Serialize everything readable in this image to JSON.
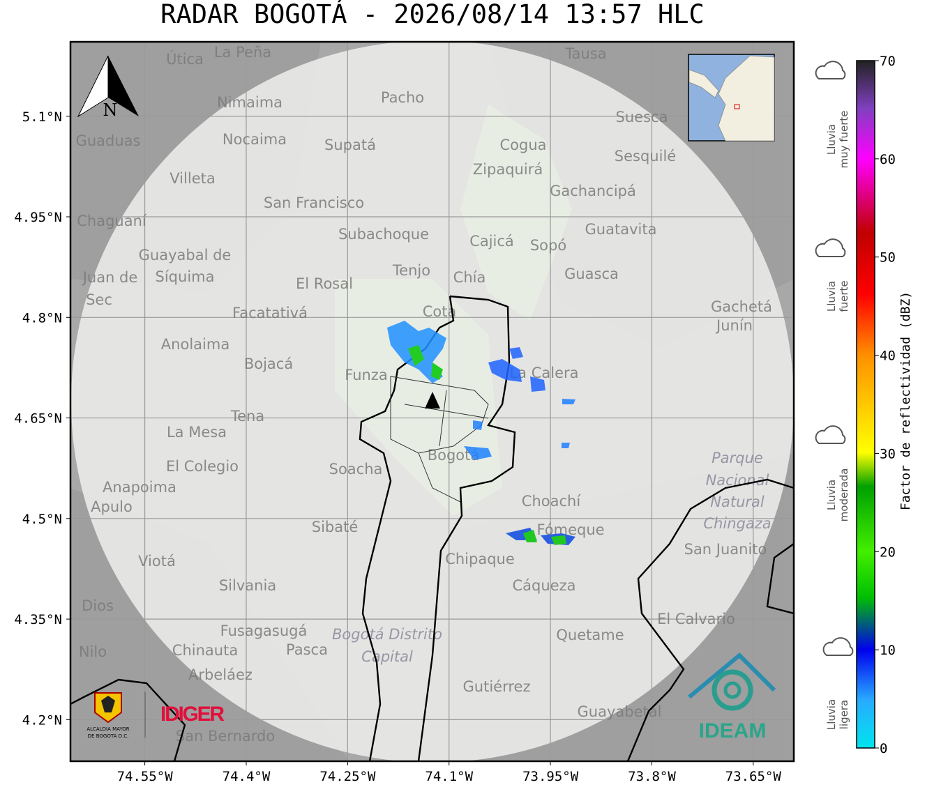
{
  "title": "RADAR BOGOTÁ - 2026/08/14 13:57 HLC",
  "map": {
    "xlim": [
      -74.66,
      -73.59
    ],
    "ylim": [
      4.138,
      5.211
    ],
    "xticks": [
      {
        "value": -74.55,
        "label": "74.55°W"
      },
      {
        "value": -74.4,
        "label": "74.4°W"
      },
      {
        "value": -74.25,
        "label": "74.25°W"
      },
      {
        "value": -74.1,
        "label": "74.1°W"
      },
      {
        "value": -73.95,
        "label": "73.95°W"
      },
      {
        "value": -73.8,
        "label": "73.8°W"
      },
      {
        "value": -73.65,
        "label": "73.65°W"
      }
    ],
    "yticks": [
      {
        "value": 5.1,
        "label": "5.1°N"
      },
      {
        "value": 4.95,
        "label": "4.95°N"
      },
      {
        "value": 4.8,
        "label": "4.8°N"
      },
      {
        "value": 4.65,
        "label": "4.65°N"
      },
      {
        "value": 4.5,
        "label": "4.5°N"
      },
      {
        "value": 4.35,
        "label": "4.35°N"
      },
      {
        "value": 4.2,
        "label": "4.2°N"
      }
    ],
    "grid": true,
    "north": "N"
  },
  "places": [
    "La Peña",
    "Útica",
    "Tausa",
    "Pacho",
    "Nimaima",
    "Suesca",
    "Guaduas",
    "Nocaima",
    "Supatá",
    "Cogua",
    "Sesquilé",
    "Zipaquirá",
    "Villeta",
    "Gachancipá",
    "San Francisco",
    "Chaguaní",
    "Guatavita",
    "Subachoque",
    "Cajicá",
    "Sopó",
    "Guayabal de",
    "Síquima",
    "Tenjo",
    "Chía",
    "Guasca",
    "Juan de",
    "El Rosal",
    "Sec",
    "Cota",
    "Gachetá",
    "Facatativá",
    "Junín",
    "Anolaima",
    "Bojacá",
    "Funza",
    "La Calera",
    "Tena",
    "La Mesa",
    "Bogotá",
    "El Colegio",
    "Soacha",
    "Anapoima",
    "Apulo",
    "Choachí",
    "Sibaté",
    "Fómeque",
    "San Juanito",
    "Viotá",
    "Chipaque",
    "Silvania",
    "Cáqueza",
    "Dios",
    "El Calvario",
    "Fusagasugá",
    "Quetame",
    "Nilo",
    "Chinauta",
    "Pasca",
    "Arbeláez",
    "Gutiérrez",
    "Guayabetal",
    "San Bernardo",
    "Parque",
    "Nacional",
    "Natural",
    "Chingaza",
    "Bogotá Distrito",
    "Capital"
  ],
  "colorbar": {
    "label": "Factor de reflectividad (dBZ)",
    "lim": [
      0,
      70
    ],
    "ticks": [
      0,
      10,
      20,
      30,
      40,
      50,
      60,
      70
    ],
    "categories": [
      [
        "Lluvia",
        "ligera"
      ],
      [
        "Lluvia",
        "moderada"
      ],
      [
        "Lluvia",
        "fuerte"
      ],
      [
        "Lluvia",
        "muy fuerte"
      ]
    ]
  },
  "logos": {
    "idiger": "IDIGER",
    "alcaldia": [
      "ALCALDÍA MAYOR",
      "DE BOGOTÁ D.C."
    ],
    "ideam": "IDEAM"
  }
}
